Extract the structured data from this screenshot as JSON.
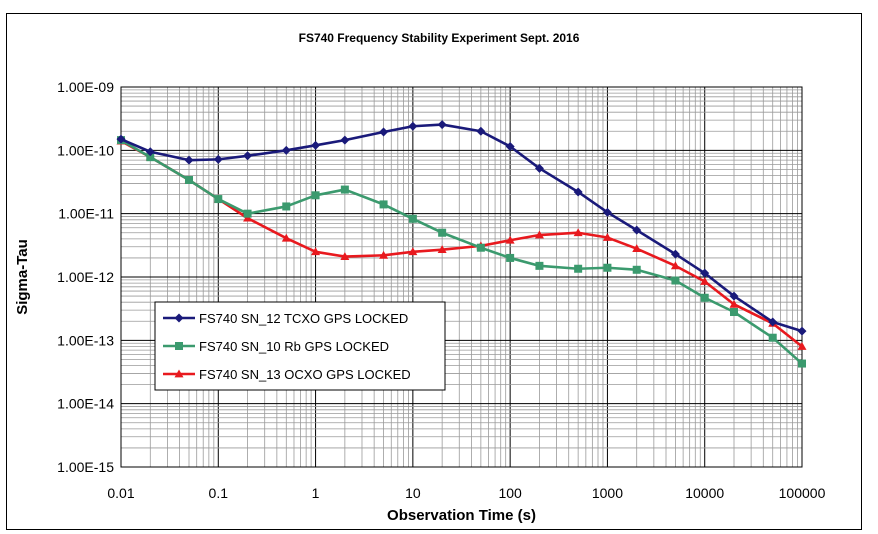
{
  "chart_data": {
    "type": "line",
    "title": "FS740 Frequency Stability Experiment Sept. 2016",
    "xlabel": "Observation Time (s)",
    "ylabel": "Sigma-Tau",
    "x_scale": "log",
    "y_scale": "log",
    "xlim": [
      0.01,
      100000
    ],
    "ylim": [
      1e-15,
      1e-09
    ],
    "x_tick_labels": [
      "0.01",
      "0.1",
      "1",
      "10",
      "100",
      "1000",
      "10000",
      "100000"
    ],
    "y_tick_labels": [
      "1.00E-09",
      "1.00E-10",
      "1.00E-11",
      "1.00E-12",
      "1.00E-13",
      "1.00E-14",
      "1.00E-15"
    ],
    "grid": true,
    "legend_position": "lower-left",
    "x": [
      0.01,
      0.02,
      0.05,
      0.1,
      0.2,
      0.5,
      1,
      2,
      5,
      10,
      20,
      50,
      100,
      200,
      500,
      1000,
      2000,
      5000,
      10000,
      20000,
      50000,
      100000
    ],
    "series": [
      {
        "name": "FS740 SN_12 TCXO GPS LOCKED",
        "color": "#1a1a7a",
        "marker": "diamond",
        "values": [
          1.5e-10,
          9.5e-11,
          7e-11,
          7.2e-11,
          8.2e-11,
          1e-10,
          1.2e-10,
          1.45e-10,
          1.95e-10,
          2.4e-10,
          2.55e-10,
          2e-10,
          1.15e-10,
          5.2e-11,
          2.2e-11,
          1.05e-11,
          5.5e-12,
          2.3e-12,
          1.15e-12,
          5e-13,
          1.95e-13,
          1.4e-13
        ]
      },
      {
        "name": "FS740 SN_10 Rb GPS LOCKED",
        "color": "#3b9a6e",
        "marker": "square",
        "values": [
          1.45e-10,
          7.8e-11,
          3.4e-11,
          1.7e-11,
          1e-11,
          1.3e-11,
          1.95e-11,
          2.4e-11,
          1.4e-11,
          8.3e-12,
          5e-12,
          2.9e-12,
          2e-12,
          1.5e-12,
          1.35e-12,
          1.4e-12,
          1.3e-12,
          8.8e-13,
          4.7e-13,
          2.8e-13,
          1.1e-13,
          4.3e-14
        ]
      },
      {
        "name": "FS740 SN_13 OCXO GPS LOCKED",
        "color": "#e8191e",
        "marker": "triangle",
        "values": [
          1.4e-10,
          7.8e-11,
          3.4e-11,
          1.7e-11,
          8.5e-12,
          4.1e-12,
          2.5e-12,
          2.1e-12,
          2.2e-12,
          2.5e-12,
          2.7e-12,
          3.1e-12,
          3.8e-12,
          4.6e-12,
          5e-12,
          4.2e-12,
          2.8e-12,
          1.5e-12,
          8.5e-13,
          3.7e-13,
          1.85e-13,
          8e-14
        ]
      }
    ]
  }
}
